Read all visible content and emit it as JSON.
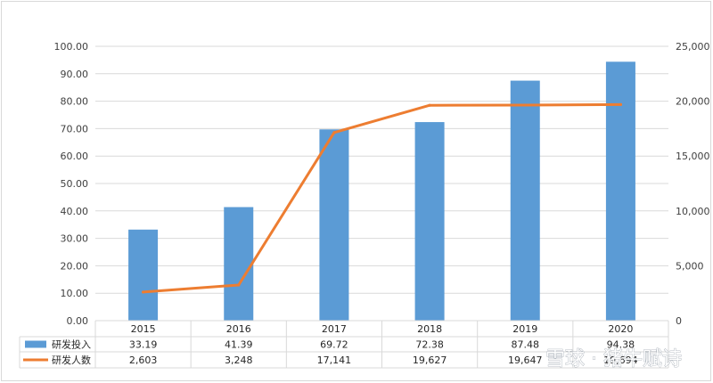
{
  "chart_data": {
    "type": "bar",
    "categories": [
      "2015",
      "2016",
      "2017",
      "2018",
      "2019",
      "2020"
    ],
    "series": [
      {
        "name": "研发投入",
        "type": "bar",
        "axis": "left",
        "values": [
          33.19,
          41.39,
          69.72,
          72.38,
          87.48,
          94.38
        ],
        "labels": [
          "33.19",
          "41.39",
          "69.72",
          "72.38",
          "87.48",
          "94.38"
        ]
      },
      {
        "name": "研发人数",
        "type": "line",
        "axis": "right",
        "values": [
          2603,
          3248,
          17141,
          19627,
          19647,
          19694
        ],
        "labels": [
          "2,603",
          "3,248",
          "17,141",
          "19,627",
          "19,647",
          "19,694"
        ]
      }
    ],
    "yleft": {
      "min": 0,
      "max": 100,
      "step": 10,
      "ticks": [
        "0.00",
        "10.00",
        "20.00",
        "30.00",
        "40.00",
        "50.00",
        "60.00",
        "70.00",
        "80.00",
        "90.00",
        "100.00"
      ]
    },
    "yright": {
      "min": 0,
      "max": 25000,
      "step": 5000,
      "ticks": [
        "0",
        "5,000",
        "10,000",
        "15,000",
        "20,000",
        "25,000"
      ]
    },
    "grid": true,
    "legend": "data-table-below",
    "colors": {
      "bar": "#5b9bd5",
      "line": "#ed7d31",
      "grid": "#d9d9d9"
    }
  },
  "watermark": "雪球 · 猪牛赋诗"
}
